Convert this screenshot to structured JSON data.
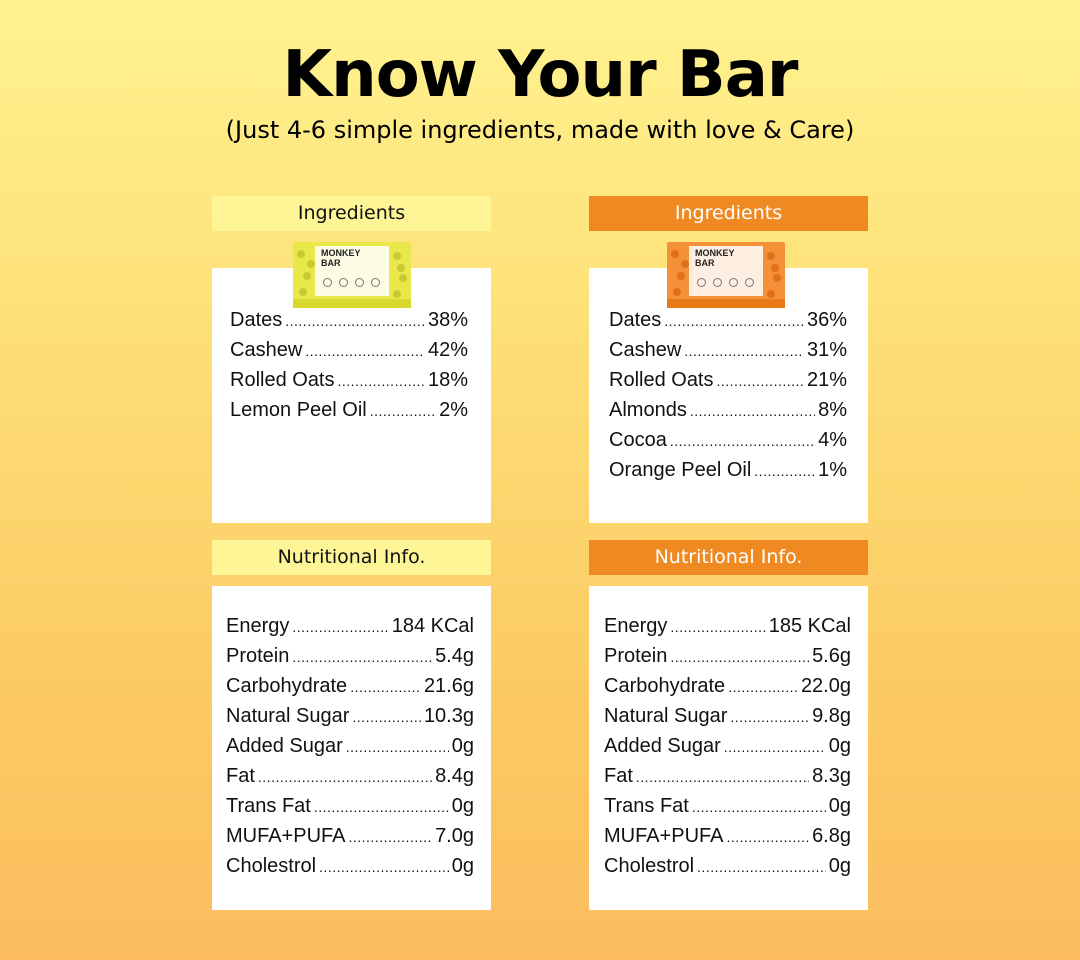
{
  "page": {
    "title": "Know Your Bar",
    "subtitle": "(Just 4-6 simple ingredients, made with love & Care)"
  },
  "colors": {
    "lemon_header": "#fef596",
    "orange_header": "#ef8a22",
    "lemon_pack": "#e8e84a",
    "orange_pack": "#f39038"
  },
  "lemon": {
    "ingredients_header": "Ingredients",
    "pack_brand": "MONKEY BAR",
    "ingredients": [
      {
        "label": "Dates",
        "value": "38%"
      },
      {
        "label": "Cashew",
        "value": "42%"
      },
      {
        "label": "Rolled Oats",
        "value": "18%"
      },
      {
        "label": "Lemon Peel Oil",
        "value": "2%"
      }
    ],
    "nutrition_header": "Nutritional Info.",
    "nutrition": [
      {
        "label": "Energy",
        "value": "184 KCal"
      },
      {
        "label": "Protein",
        "value": "5.4g"
      },
      {
        "label": "Carbohydrate",
        "value": "21.6g"
      },
      {
        "label": "Natural Sugar",
        "value": "10.3g"
      },
      {
        "label": "Added Sugar",
        "value": "0g"
      },
      {
        "label": "Fat",
        "value": "8.4g"
      },
      {
        "label": "Trans Fat",
        "value": "0g"
      },
      {
        "label": "MUFA+PUFA",
        "value": "7.0g"
      },
      {
        "label": "Cholestrol",
        "value": "0g"
      }
    ]
  },
  "orange": {
    "ingredients_header": "Ingredients",
    "pack_brand": "MONKEY BAR",
    "ingredients": [
      {
        "label": "Dates",
        "value": "36%"
      },
      {
        "label": "Cashew",
        "value": "31%"
      },
      {
        "label": "Rolled Oats",
        "value": "21%"
      },
      {
        "label": "Almonds",
        "value": "8%"
      },
      {
        "label": "Cocoa",
        "value": "4%"
      },
      {
        "label": "Orange Peel Oil",
        "value": "1%"
      }
    ],
    "nutrition_header": "Nutritional Info.",
    "nutrition": [
      {
        "label": "Energy",
        "value": "185 KCal"
      },
      {
        "label": "Protein",
        "value": "5.6g"
      },
      {
        "label": "Carbohydrate",
        "value": "22.0g"
      },
      {
        "label": "Natural Sugar",
        "value": "9.8g"
      },
      {
        "label": "Added Sugar",
        "value": "0g"
      },
      {
        "label": "Fat",
        "value": "8.3g"
      },
      {
        "label": "Trans Fat",
        "value": "0g"
      },
      {
        "label": "MUFA+PUFA",
        "value": "6.8g"
      },
      {
        "label": "Cholestrol",
        "value": "0g"
      }
    ]
  }
}
